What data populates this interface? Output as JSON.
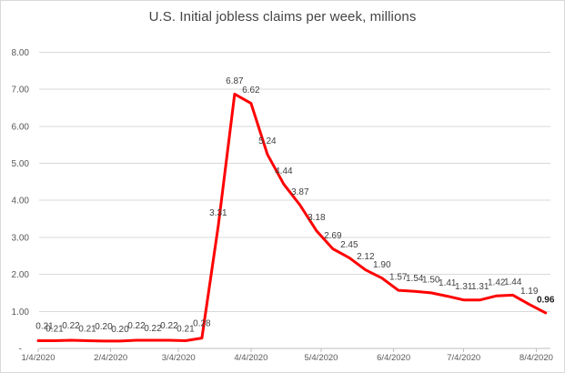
{
  "title": "U.S. Initial jobless claims per week, millions",
  "colors": {
    "line": "#FF0000",
    "gridline": "#D9D9D9",
    "axis_line": "#BFBFBF",
    "tick_label": "#595959",
    "data_label": "#404040",
    "title": "#444444",
    "border": "#D9D9D9",
    "background": "#FFFFFF"
  },
  "chart_data": {
    "type": "line",
    "title": "U.S. Initial jobless claims per week, millions",
    "xlabel": "",
    "ylabel": "",
    "ylim": [
      0,
      8
    ],
    "grid": true,
    "legend": "none",
    "line_color": "#FF0000",
    "points_interval_days": 7,
    "x_tick_labels": [
      "1/4/2020",
      "2/4/2020",
      "3/4/2020",
      "4/4/2020",
      "5/4/2020",
      "6/4/2020",
      "7/4/2020",
      "8/4/2020"
    ],
    "x_tick_days": [
      0,
      31,
      60,
      91,
      121,
      152,
      182,
      213
    ],
    "y_tick_labels": [
      "8.00",
      "7.00",
      "6.00",
      "5.00",
      "4.00",
      "3.00",
      "2.00",
      "1.00",
      "-"
    ],
    "y_tick_values": [
      8,
      7,
      6,
      5,
      4,
      3,
      2,
      1,
      0
    ],
    "values": [
      0.21,
      0.21,
      0.22,
      0.21,
      0.2,
      0.2,
      0.22,
      0.22,
      0.22,
      0.21,
      0.28,
      3.31,
      6.87,
      6.62,
      5.24,
      4.44,
      3.87,
      3.18,
      2.69,
      2.45,
      2.12,
      1.9,
      1.57,
      1.54,
      1.5,
      1.41,
      1.31,
      1.31,
      1.42,
      1.44,
      1.19,
      0.96
    ],
    "point_labels": [
      "0.21",
      "0.21",
      "0.22",
      "0.21",
      "0.20",
      "0.20",
      "0.22",
      "0.22",
      "0.22",
      "0.21",
      "0.28",
      "3.31",
      "6.87",
      "6.62",
      "5.24",
      "4.44",
      "3.87",
      "3.18",
      "2.69",
      "2.45",
      "2.12",
      "1.90",
      "1.57",
      "1.54",
      "1.50",
      "1.41",
      "1.31",
      "1.31",
      "1.42",
      "1.44",
      "1.19",
      "0.96"
    ],
    "last_label_bold": true
  }
}
